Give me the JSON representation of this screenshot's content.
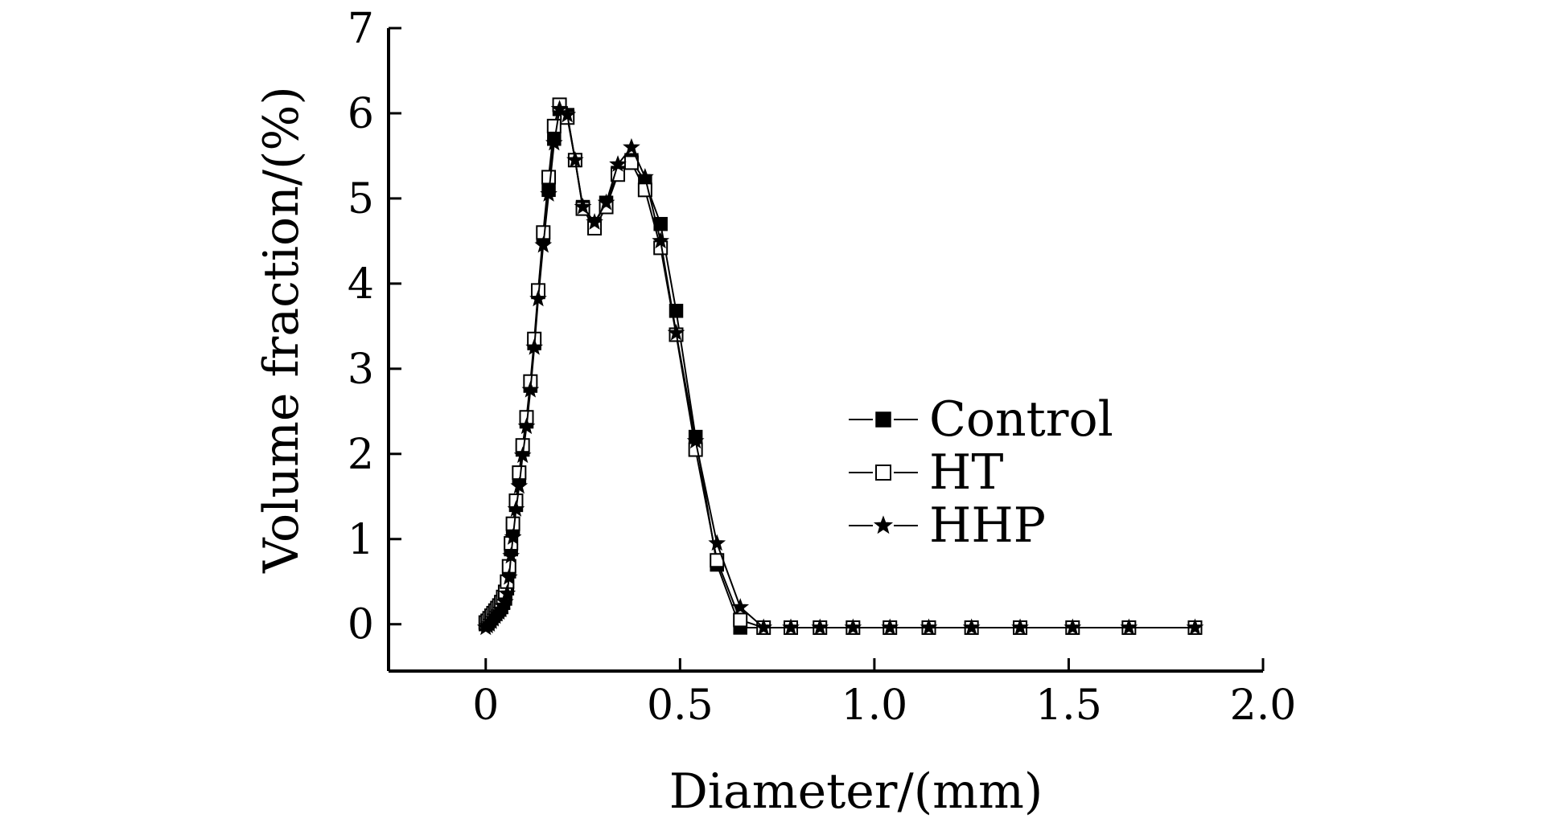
{
  "chart_data": {
    "type": "line",
    "title": "",
    "xlabel": "Diameter/(mm)",
    "ylabel": "Volume fraction/(%)",
    "xlim": [
      -0.25,
      2.0
    ],
    "ylim": [
      -0.55,
      7
    ],
    "xticks": [
      0,
      0.5,
      1.0,
      1.5,
      2.0
    ],
    "xtick_labels": [
      "0",
      "0.5",
      "1.0",
      "1.5",
      "2.0"
    ],
    "yticks": [
      0,
      1,
      2,
      3,
      4,
      5,
      6,
      7
    ],
    "ytick_labels": [
      "0",
      "1",
      "2",
      "3",
      "4",
      "5",
      "6",
      "7"
    ],
    "grid": false,
    "legend_position": "center-right",
    "series": [
      {
        "name": "Control",
        "marker": "filled-square",
        "x": [
          0.0,
          0.005,
          0.01,
          0.015,
          0.02,
          0.025,
          0.03,
          0.035,
          0.04,
          0.045,
          0.05,
          0.055,
          0.06,
          0.065,
          0.07,
          0.078,
          0.086,
          0.095,
          0.105,
          0.115,
          0.125,
          0.135,
          0.148,
          0.162,
          0.176,
          0.19,
          0.21,
          0.23,
          0.25,
          0.28,
          0.31,
          0.34,
          0.375,
          0.41,
          0.45,
          0.49,
          0.54,
          0.595,
          0.655,
          0.715,
          0.785,
          0.86,
          0.945,
          1.04,
          1.14,
          1.25,
          1.375,
          1.51,
          1.655,
          1.825
        ],
        "y": [
          0.0,
          0.02,
          0.04,
          0.07,
          0.1,
          0.12,
          0.15,
          0.17,
          0.2,
          0.25,
          0.3,
          0.42,
          0.62,
          0.88,
          1.12,
          1.4,
          1.72,
          2.05,
          2.38,
          2.8,
          3.3,
          3.9,
          4.55,
          5.1,
          5.7,
          6.05,
          5.98,
          5.45,
          4.9,
          4.7,
          4.95,
          5.3,
          5.45,
          5.2,
          4.7,
          3.68,
          2.2,
          0.7,
          -0.04,
          -0.04,
          -0.04,
          -0.04,
          -0.04,
          -0.04,
          -0.04,
          -0.04,
          -0.04,
          -0.04,
          -0.04,
          -0.04
        ]
      },
      {
        "name": "HT",
        "marker": "open-square",
        "x": [
          0.0,
          0.005,
          0.01,
          0.015,
          0.02,
          0.025,
          0.03,
          0.035,
          0.04,
          0.045,
          0.05,
          0.055,
          0.06,
          0.065,
          0.07,
          0.078,
          0.086,
          0.095,
          0.105,
          0.115,
          0.125,
          0.135,
          0.148,
          0.162,
          0.176,
          0.19,
          0.21,
          0.23,
          0.25,
          0.28,
          0.31,
          0.34,
          0.375,
          0.41,
          0.45,
          0.49,
          0.54,
          0.595,
          0.655,
          0.715,
          0.785,
          0.86,
          0.945,
          1.04,
          1.14,
          1.25,
          1.375,
          1.51,
          1.655,
          1.825
        ],
        "y": [
          0.02,
          0.04,
          0.07,
          0.1,
          0.13,
          0.16,
          0.19,
          0.22,
          0.26,
          0.32,
          0.38,
          0.5,
          0.68,
          0.95,
          1.18,
          1.45,
          1.78,
          2.1,
          2.43,
          2.85,
          3.35,
          3.92,
          4.6,
          5.25,
          5.85,
          6.1,
          5.95,
          5.45,
          4.88,
          4.65,
          4.9,
          5.28,
          5.42,
          5.1,
          4.42,
          3.4,
          2.05,
          0.75,
          0.05,
          -0.04,
          -0.04,
          -0.04,
          -0.04,
          -0.04,
          -0.04,
          -0.04,
          -0.04,
          -0.04,
          -0.04,
          -0.04
        ]
      },
      {
        "name": "HHP",
        "marker": "star",
        "x": [
          0.0,
          0.005,
          0.01,
          0.015,
          0.02,
          0.025,
          0.03,
          0.035,
          0.04,
          0.045,
          0.05,
          0.055,
          0.06,
          0.065,
          0.07,
          0.078,
          0.086,
          0.095,
          0.105,
          0.115,
          0.125,
          0.135,
          0.148,
          0.162,
          0.176,
          0.19,
          0.21,
          0.23,
          0.25,
          0.28,
          0.31,
          0.34,
          0.375,
          0.41,
          0.45,
          0.49,
          0.54,
          0.595,
          0.655,
          0.715,
          0.785,
          0.86,
          0.945,
          1.04,
          1.14,
          1.25,
          1.375,
          1.51,
          1.655,
          1.825
        ],
        "y": [
          -0.04,
          -0.02,
          0.0,
          0.03,
          0.06,
          0.09,
          0.12,
          0.14,
          0.17,
          0.21,
          0.26,
          0.36,
          0.55,
          0.8,
          1.02,
          1.35,
          1.62,
          1.98,
          2.32,
          2.75,
          3.25,
          3.82,
          4.45,
          5.05,
          5.65,
          6.05,
          5.98,
          5.45,
          4.9,
          4.72,
          4.95,
          5.4,
          5.6,
          5.25,
          4.5,
          3.42,
          2.15,
          0.95,
          0.2,
          -0.04,
          -0.04,
          -0.04,
          -0.04,
          -0.04,
          -0.04,
          -0.04,
          -0.04,
          -0.04,
          -0.04,
          -0.04
        ]
      }
    ]
  }
}
